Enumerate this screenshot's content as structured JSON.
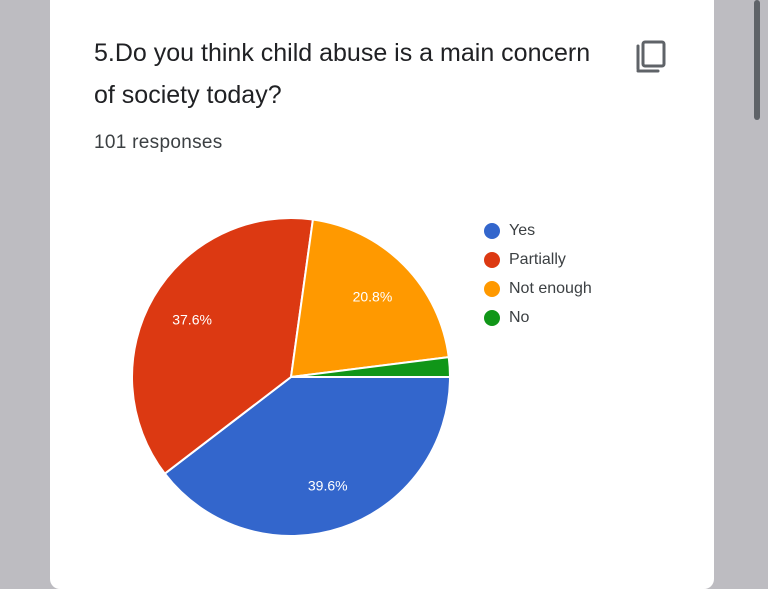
{
  "question": {
    "title": "5.Do you think child abuse is a main concern of society today?",
    "responses": "101 responses"
  },
  "icons": {
    "copy": "copy-icon"
  },
  "chart_data": {
    "type": "pie",
    "categories": [
      "Yes",
      "Partially",
      "Not enough",
      "No"
    ],
    "values": [
      39.6,
      37.6,
      20.8,
      2.0
    ],
    "labels": [
      "39.6%",
      "37.6%",
      "20.8%",
      ""
    ],
    "colors": [
      "#3366cc",
      "#dc3912",
      "#ff9900",
      "#109618"
    ],
    "legend_position": "right"
  }
}
